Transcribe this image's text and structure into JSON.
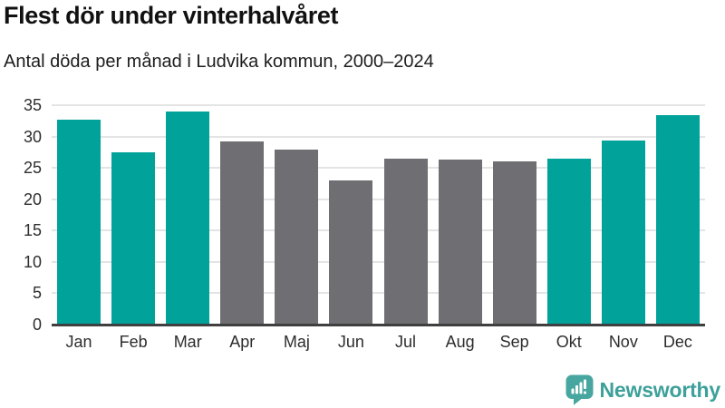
{
  "chart_data": {
    "type": "bar",
    "title": "Flest dör under vinterhalvåret",
    "subtitle": "Antal döda per månad i Ludvika kommun, 2000–2024",
    "categories": [
      "Jan",
      "Feb",
      "Mar",
      "Apr",
      "Maj",
      "Jun",
      "Jul",
      "Aug",
      "Sep",
      "Okt",
      "Nov",
      "Dec"
    ],
    "values": [
      32.7,
      27.5,
      34.0,
      29.2,
      27.9,
      23.0,
      26.4,
      26.3,
      26.1,
      26.4,
      29.3,
      33.4
    ],
    "highlighted": [
      true,
      true,
      true,
      false,
      false,
      false,
      false,
      false,
      false,
      true,
      true,
      true
    ],
    "highlight_color": "#00a29a",
    "base_color": "#6e6e73",
    "xlabel": "",
    "ylabel": "",
    "ylim": [
      0,
      35
    ],
    "yticks": [
      0,
      5,
      10,
      15,
      20,
      25,
      30,
      35
    ],
    "grid": true,
    "legend": "none"
  },
  "footer": {
    "brand": "Newsworthy",
    "brand_color": "#3da09a",
    "logo_icon_color": "#48a6a0",
    "logo_icon": "newsworthy-speech-bubble-chart-icon"
  }
}
